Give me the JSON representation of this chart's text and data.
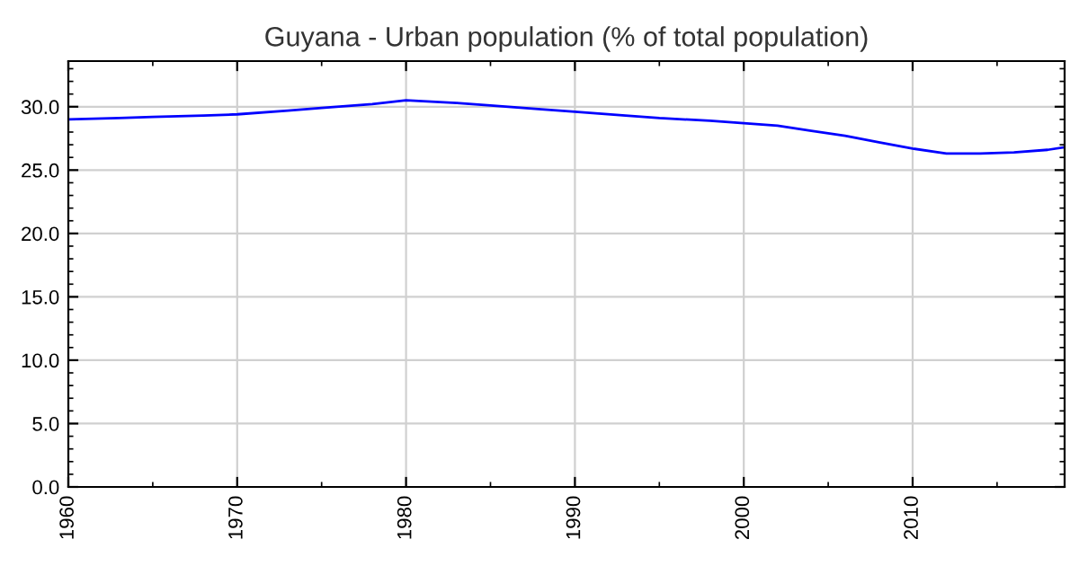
{
  "chart_data": {
    "type": "line",
    "title": "Guyana - Urban population (% of total population)",
    "x": [
      1960,
      1963,
      1965,
      1968,
      1970,
      1973,
      1975,
      1978,
      1980,
      1983,
      1985,
      1988,
      1990,
      1993,
      1995,
      1998,
      2000,
      2002,
      2004,
      2006,
      2008,
      2010,
      2012,
      2014,
      2016,
      2018,
      2019
    ],
    "series": [
      {
        "color": "#0000ff",
        "values": [
          29.0,
          29.1,
          29.2,
          29.3,
          29.4,
          29.7,
          29.9,
          30.2,
          30.5,
          30.3,
          30.1,
          29.8,
          29.6,
          29.3,
          29.1,
          28.9,
          28.7,
          28.5,
          28.1,
          27.7,
          27.2,
          26.7,
          26.3,
          26.3,
          26.4,
          26.6,
          26.8
        ]
      }
    ],
    "xlim": [
      1960,
      2019
    ],
    "ylim": [
      0,
      33.6
    ],
    "xticks": [
      1960,
      1970,
      1980,
      1990,
      2000,
      2010
    ],
    "yticks": [
      {
        "value": 0,
        "label": "0.0"
      },
      {
        "value": 5,
        "label": "5.0"
      },
      {
        "value": 10,
        "label": "10.0"
      },
      {
        "value": 15,
        "label": "15.0"
      },
      {
        "value": 20,
        "label": "20.0"
      },
      {
        "value": 25,
        "label": "25.0"
      },
      {
        "value": 30,
        "label": "30.0"
      }
    ],
    "grid": true,
    "marker": "none",
    "line_style": "solid"
  }
}
